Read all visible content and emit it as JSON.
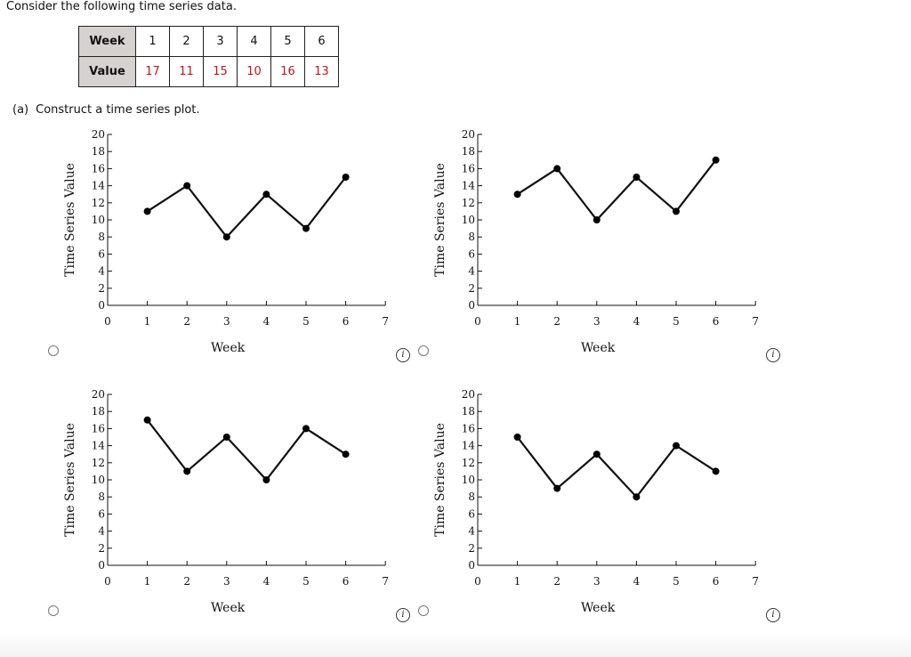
{
  "intro": "Consider the following time series data.",
  "table": {
    "week_header": "Week",
    "value_header": "Value",
    "weeks": [
      "1",
      "2",
      "3",
      "4",
      "5",
      "6"
    ],
    "values": [
      "17",
      "11",
      "15",
      "10",
      "16",
      "13"
    ]
  },
  "question": {
    "part_label": "(a)",
    "part_text": "Construct a time series plot."
  },
  "info_icon_glyph": "i",
  "chart_data": [
    {
      "type": "line",
      "title": "",
      "xlabel": "Week",
      "ylabel": "Time Series Value",
      "xlim": [
        0,
        7
      ],
      "ylim": [
        0,
        20
      ],
      "x_ticks": [
        0,
        1,
        2,
        3,
        4,
        5,
        6,
        7
      ],
      "y_ticks": [
        0,
        2,
        4,
        6,
        8,
        10,
        12,
        14,
        16,
        18,
        20
      ],
      "x": [
        1,
        2,
        3,
        4,
        5,
        6
      ],
      "y": [
        11,
        14,
        8,
        13,
        9,
        15
      ]
    },
    {
      "type": "line",
      "title": "",
      "xlabel": "Week",
      "ylabel": "Time Series Value",
      "xlim": [
        0,
        7
      ],
      "ylim": [
        0,
        20
      ],
      "x_ticks": [
        0,
        1,
        2,
        3,
        4,
        5,
        6,
        7
      ],
      "y_ticks": [
        0,
        2,
        4,
        6,
        8,
        10,
        12,
        14,
        16,
        18,
        20
      ],
      "x": [
        1,
        2,
        3,
        4,
        5,
        6
      ],
      "y": [
        13,
        16,
        10,
        15,
        11,
        17
      ]
    },
    {
      "type": "line",
      "title": "",
      "xlabel": "Week",
      "ylabel": "Time Series Value",
      "xlim": [
        0,
        7
      ],
      "ylim": [
        0,
        20
      ],
      "x_ticks": [
        0,
        1,
        2,
        3,
        4,
        5,
        6,
        7
      ],
      "y_ticks": [
        0,
        2,
        4,
        6,
        8,
        10,
        12,
        14,
        16,
        18,
        20
      ],
      "x": [
        1,
        2,
        3,
        4,
        5,
        6
      ],
      "y": [
        17,
        11,
        15,
        10,
        16,
        13
      ]
    },
    {
      "type": "line",
      "title": "",
      "xlabel": "Week",
      "ylabel": "Time Series Value",
      "xlim": [
        0,
        7
      ],
      "ylim": [
        0,
        20
      ],
      "x_ticks": [
        0,
        1,
        2,
        3,
        4,
        5,
        6,
        7
      ],
      "y_ticks": [
        0,
        2,
        4,
        6,
        8,
        10,
        12,
        14,
        16,
        18,
        20
      ],
      "x": [
        1,
        2,
        3,
        4,
        5,
        6
      ],
      "y": [
        15,
        9,
        13,
        8,
        14,
        11
      ]
    }
  ]
}
